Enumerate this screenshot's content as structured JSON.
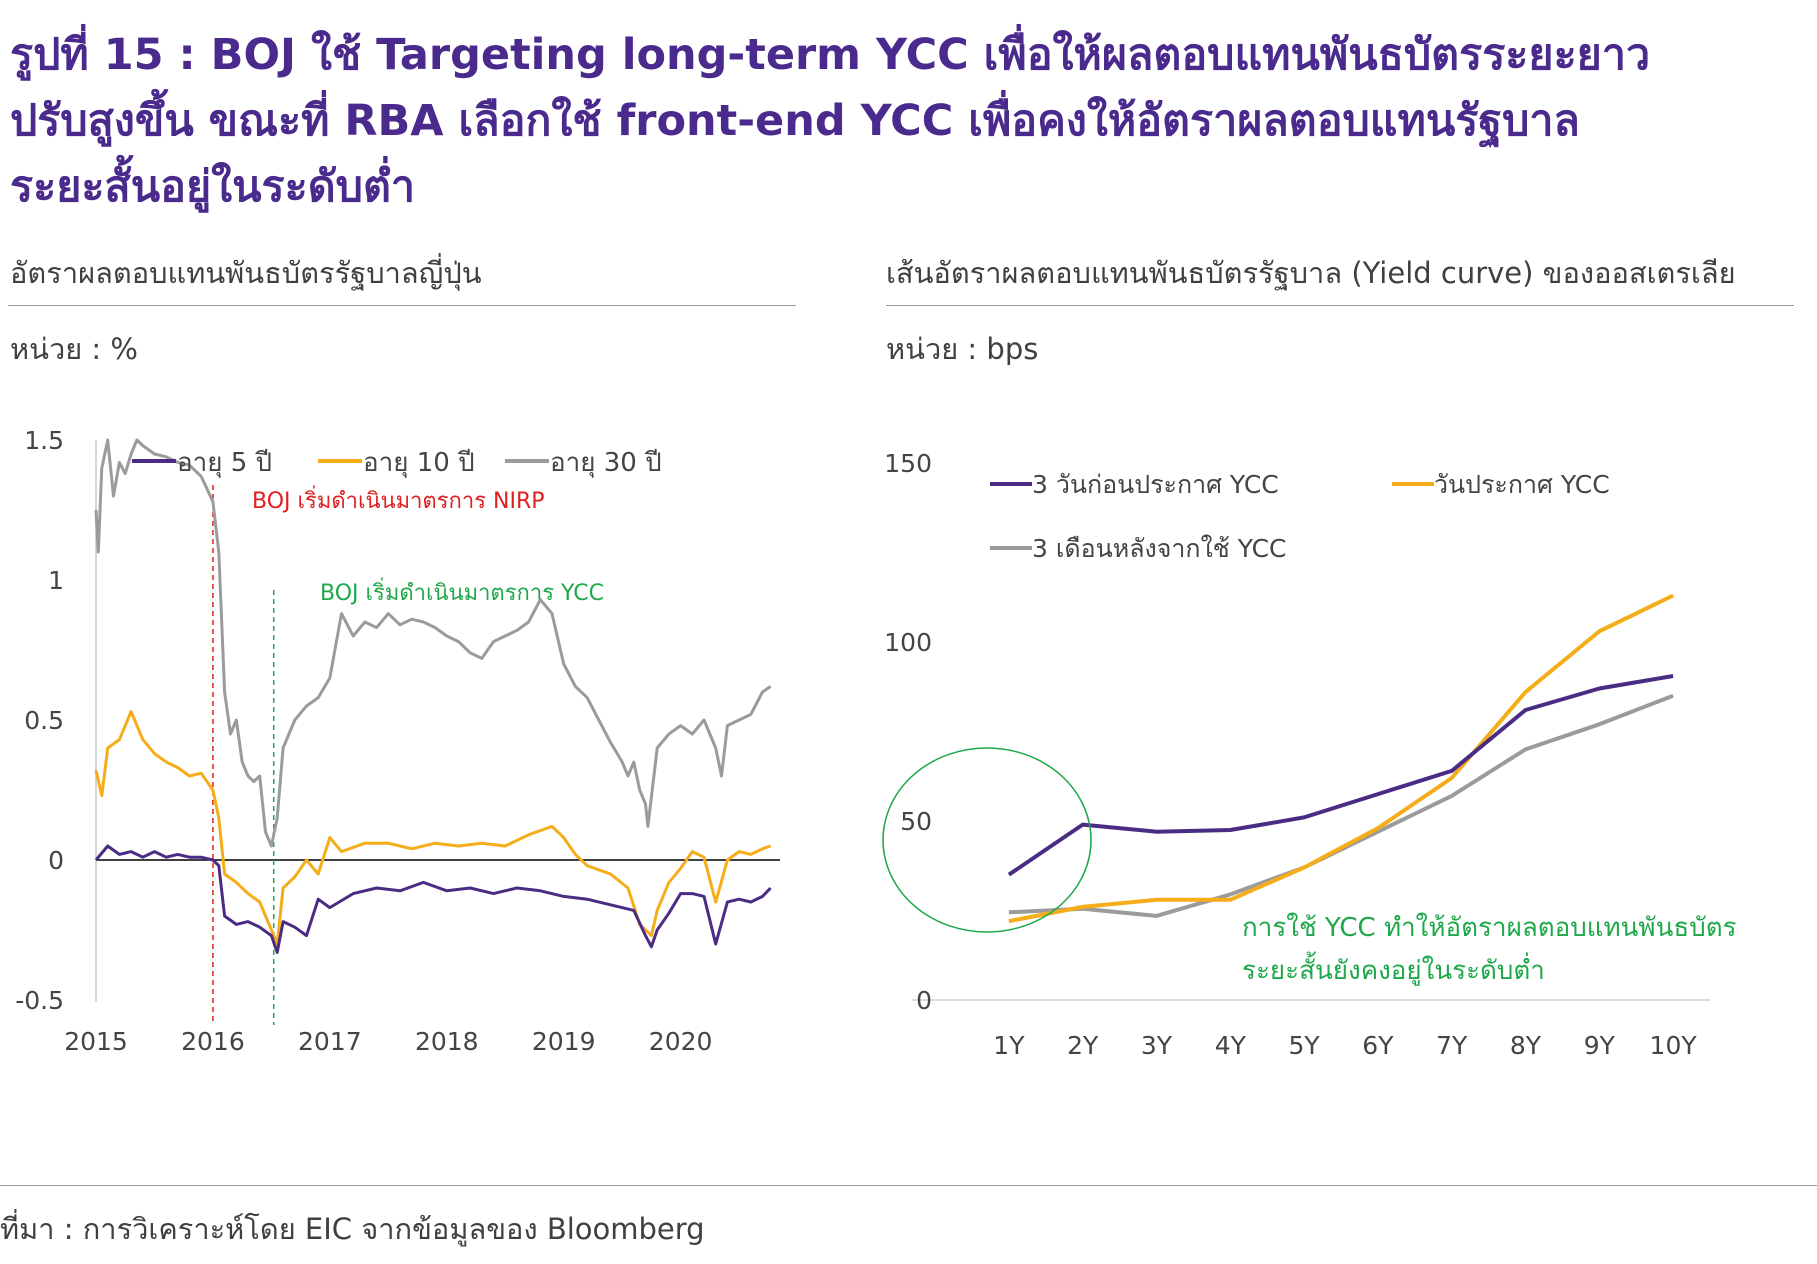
{
  "title": {
    "line1": "รูปที่ 15 : BOJ ใช้ Targeting long-term YCC เพื่อให้ผลตอบแทนพันธบัตรระยะยาว",
    "line2": "ปรับสูงขึ้น ขณะที่ RBA เลือกใช้ front-end YCC เพื่อคงให้อัตราผลตอบแทนรัฐบาล",
    "line3": "ระยะสั้นอยู่ในระดับต่ำ"
  },
  "left_panel": {
    "heading": "อัตราผลตอบแทนพันธบัตรรัฐบาลญี่ปุ่น",
    "unit": "หน่วย : %"
  },
  "right_panel": {
    "heading": "เส้นอัตราผลตอบแทนพันธบัตรรัฐบาล (Yield curve) ของออสเตรเลีย",
    "unit": "หน่วย : bps"
  },
  "source": "ที่มา : การวิเคราะห์โดย EIC จากข้อมูลของ Bloomberg",
  "colors": {
    "title": "#4a2a8c",
    "purple": "#4b2c85",
    "orange": "#f5ad19",
    "gray": "#9b9b9b",
    "red": "#e02020",
    "green": "#1fa84a"
  },
  "chart_data": [
    {
      "type": "line",
      "ylim": [
        -0.5,
        1.5
      ],
      "yticks": [
        "1.5",
        "1",
        "0.5",
        "0",
        "-0.5"
      ],
      "ytick_values": [
        1.5,
        1,
        0.5,
        0,
        -0.5
      ],
      "xticks": [
        "2015",
        "2016",
        "2017",
        "2018",
        "2019",
        "2020"
      ],
      "xtick_values": [
        2015,
        2016,
        2017,
        2018,
        2019,
        2020
      ],
      "xlim": [
        2015,
        2020.85
      ],
      "grid": false,
      "legend_position": "top",
      "series": [
        {
          "name": "อายุ 5 ปี",
          "color": "#4b2c85",
          "x": [
            2015.0,
            2015.1,
            2015.2,
            2015.3,
            2015.4,
            2015.5,
            2015.6,
            2015.7,
            2015.8,
            2015.9,
            2016.0,
            2016.05,
            2016.1,
            2016.2,
            2016.3,
            2016.4,
            2016.5,
            2016.55,
            2016.6,
            2016.7,
            2016.8,
            2016.9,
            2017.0,
            2017.2,
            2017.4,
            2017.6,
            2017.8,
            2018.0,
            2018.2,
            2018.4,
            2018.6,
            2018.8,
            2019.0,
            2019.2,
            2019.4,
            2019.6,
            2019.7,
            2019.75,
            2019.8,
            2019.9,
            2020.0,
            2020.1,
            2020.2,
            2020.3,
            2020.4,
            2020.5,
            2020.6,
            2020.7,
            2020.77
          ],
          "values": [
            0.0,
            0.05,
            0.02,
            0.03,
            0.01,
            0.03,
            0.01,
            0.02,
            0.01,
            0.01,
            0.0,
            -0.02,
            -0.2,
            -0.23,
            -0.22,
            -0.24,
            -0.27,
            -0.33,
            -0.22,
            -0.24,
            -0.27,
            -0.14,
            -0.17,
            -0.12,
            -0.1,
            -0.11,
            -0.08,
            -0.11,
            -0.1,
            -0.12,
            -0.1,
            -0.11,
            -0.13,
            -0.14,
            -0.16,
            -0.18,
            -0.27,
            -0.31,
            -0.25,
            -0.19,
            -0.12,
            -0.12,
            -0.13,
            -0.3,
            -0.15,
            -0.14,
            -0.15,
            -0.13,
            -0.1
          ]
        },
        {
          "name": "อายุ 10 ปี",
          "color": "#f5ad19",
          "x": [
            2015.0,
            2015.05,
            2015.1,
            2015.2,
            2015.3,
            2015.4,
            2015.5,
            2015.6,
            2015.7,
            2015.8,
            2015.9,
            2016.0,
            2016.05,
            2016.1,
            2016.2,
            2016.3,
            2016.4,
            2016.5,
            2016.55,
            2016.6,
            2016.7,
            2016.8,
            2016.9,
            2017.0,
            2017.1,
            2017.3,
            2017.5,
            2017.7,
            2017.9,
            2018.1,
            2018.3,
            2018.5,
            2018.7,
            2018.9,
            2019.0,
            2019.1,
            2019.2,
            2019.4,
            2019.55,
            2019.65,
            2019.75,
            2019.8,
            2019.9,
            2020.0,
            2020.1,
            2020.2,
            2020.3,
            2020.4,
            2020.5,
            2020.6,
            2020.7,
            2020.77
          ],
          "values": [
            0.32,
            0.23,
            0.4,
            0.43,
            0.53,
            0.43,
            0.38,
            0.35,
            0.33,
            0.3,
            0.31,
            0.25,
            0.15,
            -0.05,
            -0.08,
            -0.12,
            -0.15,
            -0.25,
            -0.3,
            -0.1,
            -0.06,
            0.0,
            -0.05,
            0.08,
            0.03,
            0.06,
            0.06,
            0.04,
            0.06,
            0.05,
            0.06,
            0.05,
            0.09,
            0.12,
            0.08,
            0.02,
            -0.02,
            -0.05,
            -0.1,
            -0.23,
            -0.27,
            -0.18,
            -0.08,
            -0.03,
            0.03,
            0.01,
            -0.15,
            0.0,
            0.03,
            0.02,
            0.04,
            0.05
          ]
        },
        {
          "name": "อายุ 30 ปี",
          "color": "#9b9b9b",
          "x": [
            2015.0,
            2015.02,
            2015.05,
            2015.1,
            2015.15,
            2015.2,
            2015.25,
            2015.3,
            2015.35,
            2015.4,
            2015.5,
            2015.6,
            2015.7,
            2015.8,
            2015.9,
            2016.0,
            2016.05,
            2016.1,
            2016.15,
            2016.2,
            2016.25,
            2016.3,
            2016.35,
            2016.4,
            2016.45,
            2016.5,
            2016.55,
            2016.6,
            2016.7,
            2016.8,
            2016.9,
            2017.0,
            2017.1,
            2017.2,
            2017.3,
            2017.4,
            2017.5,
            2017.6,
            2017.7,
            2017.8,
            2017.9,
            2018.0,
            2018.1,
            2018.2,
            2018.3,
            2018.4,
            2018.5,
            2018.6,
            2018.7,
            2018.8,
            2018.9,
            2019.0,
            2019.1,
            2019.2,
            2019.3,
            2019.4,
            2019.5,
            2019.55,
            2019.6,
            2019.65,
            2019.7,
            2019.72,
            2019.8,
            2019.9,
            2020.0,
            2020.1,
            2020.2,
            2020.3,
            2020.35,
            2020.4,
            2020.5,
            2020.6,
            2020.7,
            2020.77
          ],
          "values": [
            1.25,
            1.1,
            1.4,
            1.5,
            1.3,
            1.42,
            1.38,
            1.45,
            1.5,
            1.48,
            1.45,
            1.44,
            1.42,
            1.41,
            1.37,
            1.28,
            1.1,
            0.6,
            0.45,
            0.5,
            0.35,
            0.3,
            0.28,
            0.3,
            0.1,
            0.05,
            0.15,
            0.4,
            0.5,
            0.55,
            0.58,
            0.65,
            0.88,
            0.8,
            0.85,
            0.83,
            0.88,
            0.84,
            0.86,
            0.85,
            0.83,
            0.8,
            0.78,
            0.74,
            0.72,
            0.78,
            0.8,
            0.82,
            0.85,
            0.93,
            0.88,
            0.7,
            0.62,
            0.58,
            0.5,
            0.42,
            0.35,
            0.3,
            0.35,
            0.25,
            0.2,
            0.12,
            0.4,
            0.45,
            0.48,
            0.45,
            0.5,
            0.4,
            0.3,
            0.48,
            0.5,
            0.52,
            0.6,
            0.62
          ]
        }
      ],
      "annotations": [
        {
          "text": "BOJ เริ่มดำเนินมาตรการ NIRP",
          "x": 2016.0,
          "color": "#e02020"
        },
        {
          "text": "BOJ เริ่มดำเนินมาตรการ YCC",
          "x": 2016.52,
          "color": "#1fa84a"
        }
      ]
    },
    {
      "type": "line",
      "ylim": [
        0,
        150
      ],
      "yticks": [
        "150",
        "100",
        "50",
        "0"
      ],
      "ytick_values": [
        150,
        100,
        50,
        0
      ],
      "categories": [
        "1Y",
        "2Y",
        "3Y",
        "4Y",
        "5Y",
        "6Y",
        "7Y",
        "8Y",
        "9Y",
        "10Y"
      ],
      "grid": false,
      "legend_position": "top",
      "series": [
        {
          "name": "3 วันก่อนประกาศ YCC",
          "color": "#4b2c85",
          "values": [
            35,
            49,
            47,
            47.5,
            51,
            57.5,
            64,
            81,
            87,
            90.5
          ]
        },
        {
          "name": "วันประกาศ YCC",
          "color": "#f5ad19",
          "values": [
            22,
            26,
            28,
            28,
            37,
            48,
            62,
            86,
            103,
            113
          ]
        },
        {
          "name": "3 เดือนหลังจากใช้ YCC",
          "color": "#9b9b9b",
          "values": [
            24.5,
            25.5,
            23.5,
            29.5,
            37,
            47,
            57,
            70,
            77,
            85
          ]
        }
      ],
      "annotations": [
        {
          "text1": "การใช้ YCC ทำให้อัตราผลตอบแทนพันธบัตร",
          "text2": "ระยะสั้นยังคงอยู่ในระดับต่ำ",
          "color": "#1fa84a"
        }
      ]
    }
  ]
}
